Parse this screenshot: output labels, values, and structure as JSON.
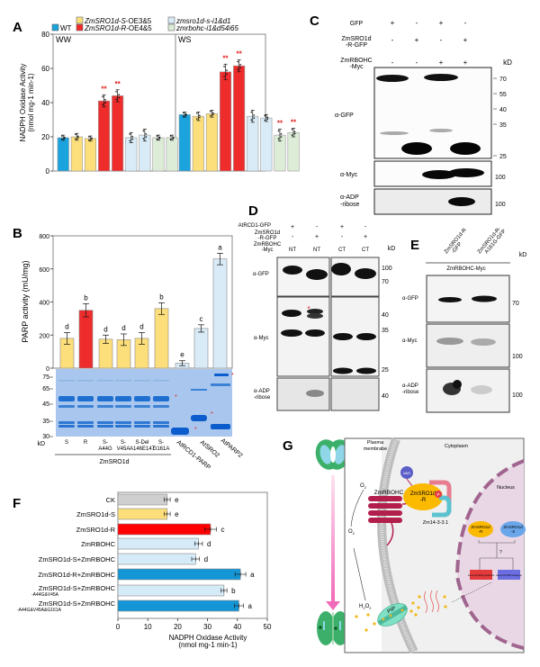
{
  "panels": {
    "A": "A",
    "B": "B",
    "C": "C",
    "D": "D",
    "E": "E",
    "F": "F",
    "G": "G"
  },
  "colors": {
    "wt": "#1aa3dc",
    "s_oe": "#fcde7a",
    "r_oe": "#ee2c2c",
    "sro_mut": "#d8ebf7",
    "rbohc_mut": "#dcecd7",
    "ck": "#cfcfcf",
    "r_red": "#ff0000",
    "blue": "#1496d6",
    "light_blue": "#d6ebf8",
    "sig": "#e21b1b"
  },
  "chart_data": [
    {
      "id": "A",
      "type": "bar",
      "title": "",
      "xlabel": "",
      "ylabel": "NADPH Oxidase Activity",
      "ylabel2": "(nmol mg-1 min-1)",
      "ylim": [
        0,
        80
      ],
      "yticks": [
        0,
        20,
        40,
        60,
        80
      ],
      "legend": [
        {
          "label": "WT",
          "color_key": "wt",
          "italic": false
        },
        {
          "label_italic": "ZmSRO1d-S",
          "label_rest": "-OE3&5",
          "color_key": "s_oe"
        },
        {
          "label_italic": "ZmSRO1d-R",
          "label_rest": "-OE4&5",
          "color_key": "r_oe"
        },
        {
          "label_italic": "zmsro1d-s-i1&d1",
          "label_rest": "",
          "color_key": "sro_mut"
        },
        {
          "label_italic": "zmrbohc-i1&d54i65",
          "label_rest": "",
          "color_key": "rbohc_mut"
        }
      ],
      "groups": [
        {
          "name": "WW",
          "values": [
            19.5,
            20,
            19,
            41,
            44,
            19.5,
            21,
            19.5,
            19.5
          ],
          "errors": [
            1.5,
            2,
            1.5,
            3.5,
            3.5,
            3,
            3.5,
            1.5,
            1.5
          ],
          "colors": [
            "wt",
            "s_oe",
            "s_oe",
            "r_oe",
            "r_oe",
            "sro_mut",
            "sro_mut",
            "rbohc_mut",
            "rbohc_mut"
          ],
          "sig": [
            "",
            "",
            "",
            "**",
            "**",
            "",
            "",
            "",
            ""
          ]
        },
        {
          "name": "WS",
          "values": [
            33,
            32,
            33.5,
            58,
            61.5,
            32,
            31,
            21,
            22.5
          ],
          "errors": [
            1.5,
            2.5,
            2,
            4.5,
            3.5,
            3.5,
            2,
            3.5,
            2.5
          ],
          "colors": [
            "wt",
            "s_oe",
            "s_oe",
            "r_oe",
            "r_oe",
            "sro_mut",
            "sro_mut",
            "rbohc_mut",
            "rbohc_mut"
          ],
          "sig": [
            "",
            "",
            "",
            "**",
            "**",
            "",
            "",
            "**",
            "**"
          ]
        }
      ]
    },
    {
      "id": "B",
      "type": "bar",
      "ylabel": "PARP activity (mU/mg)",
      "ylim": [
        0,
        800
      ],
      "yticks": [
        0,
        200,
        400,
        600,
        800
      ],
      "categories": [
        "S",
        "R",
        "S-A44G",
        "S-V45A",
        "S-Del A146E147",
        "S-G161A",
        "AtRCD1-PARP",
        "AtSRO2",
        "AtPARP2"
      ],
      "values": [
        180,
        350,
        175,
        172,
        180,
        360,
        30,
        240,
        660
      ],
      "errors": [
        35,
        40,
        25,
        35,
        35,
        35,
        15,
        22,
        35
      ],
      "letters": [
        "d",
        "b",
        "d",
        "d",
        "d",
        "b",
        "e",
        "c",
        "a"
      ],
      "colors": [
        "s_oe",
        "r_oe",
        "s_oe",
        "s_oe",
        "s_oe",
        "s_oe",
        "sro_mut",
        "sro_mut",
        "sro_mut"
      ]
    },
    {
      "id": "F",
      "type": "bar",
      "orientation": "horizontal",
      "xlabel": "NADPH Oxidase Activity",
      "xlabel2": "(nmol mg-1 min-1)",
      "xlim": [
        0,
        50
      ],
      "xticks": [
        0,
        10,
        20,
        30,
        40,
        50
      ],
      "categories": [
        {
          "label": "CK",
          "sub": ""
        },
        {
          "label": "ZmSRO1d-S",
          "sub": ""
        },
        {
          "label": "ZmSRO1d-R",
          "sub": ""
        },
        {
          "label": "ZmRBOHC",
          "sub": ""
        },
        {
          "label": "ZmSRO1d-S+ZmRBOHC",
          "sub": ""
        },
        {
          "label": "ZmSRO1d-R+ZmRBOHC",
          "sub": ""
        },
        {
          "label": "ZmSRO1d-S+ZmRBOHC",
          "sub": "-A44G&V45A"
        },
        {
          "label": "ZmSRO1d-S+ZmRBOHC",
          "sub": "-A44G&V45A&G161A"
        }
      ],
      "values": [
        16.5,
        16.5,
        31,
        27,
        26,
        41,
        35.5,
        40.5
      ],
      "errors": [
        1,
        1,
        2,
        1.3,
        1.3,
        1.8,
        1,
        1.5
      ],
      "letters": [
        "e",
        "e",
        "c",
        "d",
        "d",
        "a",
        "b",
        "a"
      ],
      "colors": [
        "ck",
        "s_oe",
        "r_red",
        "light_blue",
        "light_blue",
        "blue",
        "light_blue",
        "blue"
      ]
    }
  ],
  "panelB_gel": {
    "kd_label": "kD",
    "markers": [
      "75",
      "65",
      "45",
      "35",
      "30"
    ],
    "lane_labels": [
      "S",
      "R",
      "S-\nA44G",
      "S-\nV45A",
      "S-Del\nA146E147",
      "S-\nG161A"
    ],
    "lane_line1": [
      "S",
      "R",
      "S-",
      "S-",
      "S-Del",
      "S-"
    ],
    "lane_line2": [
      "",
      "",
      "A44G",
      "V45A",
      "A146E147",
      "G161A"
    ],
    "group_label": "ZmSRO1d",
    "rotated_labels": [
      "AtRCD1-PARP",
      "AtSRO2",
      "AtPARP2"
    ]
  },
  "panelC": {
    "row_labels": [
      "GFP",
      "ZmSRO1d",
      "-R-GFP",
      "ZmRBOHC",
      "-Myc"
    ],
    "rows": [
      [
        "+",
        "-",
        "+",
        "-"
      ],
      [
        "-",
        "+",
        "-",
        "+"
      ],
      [
        "-",
        "-",
        "+",
        "+"
      ]
    ],
    "kd": "kD",
    "blots": [
      "α-GFP",
      "α-Myc",
      "α-ADP",
      "-ribose"
    ],
    "markers_gfp": [
      "70",
      "55",
      "40",
      "35",
      "25"
    ],
    "markers_myc": [
      "100"
    ],
    "markers_adp": [
      "100"
    ]
  },
  "panelD": {
    "row_labels": [
      "AtRCD1-GFP",
      "ZmSRO1d",
      "-R-GFP",
      "ZmRBOHC",
      "-Myc"
    ],
    "rows": [
      [
        "+",
        "-",
        "+",
        "-"
      ],
      [
        "-",
        "+",
        "-",
        "+"
      ]
    ],
    "fractions": [
      "NT",
      "NT",
      "CT",
      "CT"
    ],
    "kd": "kD",
    "blots": [
      "α-GFP",
      "α-Myc",
      "α-ADP",
      "-ribose"
    ],
    "markers_gfp": [
      "100",
      "70"
    ],
    "markers_myc": [
      "40",
      "35",
      "25"
    ],
    "markers_adp": [
      "40"
    ]
  },
  "panelE": {
    "lanes": [
      "ZmSRO1d-R\n-GFP",
      "ZmSRO1d-R-\nA161G-GFP"
    ],
    "lane1_a": "ZmSRO1d-R",
    "lane1_b": "-GFP",
    "lane2_a": "ZmSRO1d-R-",
    "lane2_b": "A161G-GFP",
    "group": "ZmRBOHC-Myc",
    "kd": "kD",
    "blots": [
      "α-GFP",
      "α-Myc",
      "α-ADP",
      "-ribose"
    ],
    "markers": [
      "70",
      "100",
      "100"
    ]
  },
  "panelG": {
    "plasma": "Plasma",
    "membrane": "membrabe",
    "cytoplasm": "Cytoplasm",
    "nucleus": "Nucleus",
    "o2": "O",
    "o2_sub": "2",
    "o2minus": "O",
    "o2minus_sup": "2",
    "h2o2": "H",
    "h2o2_b": "O",
    "rbohc": "ZmRBOHC",
    "mar": "MAR",
    "sro_r": "ZmSRO1d",
    "sro_r2": "-R",
    "p": "P",
    "zm14": "Zm14-3-3.1",
    "n_r1": "ZmSRO1d",
    "n_r2": "-R",
    "n_s1": "ZmSRO1d",
    "n_s2": "-S",
    "q": "?",
    "gene_prod": "Genes for ROS production",
    "gene_scav": "Genes for ROS scavenge",
    "pip": "PIP"
  }
}
